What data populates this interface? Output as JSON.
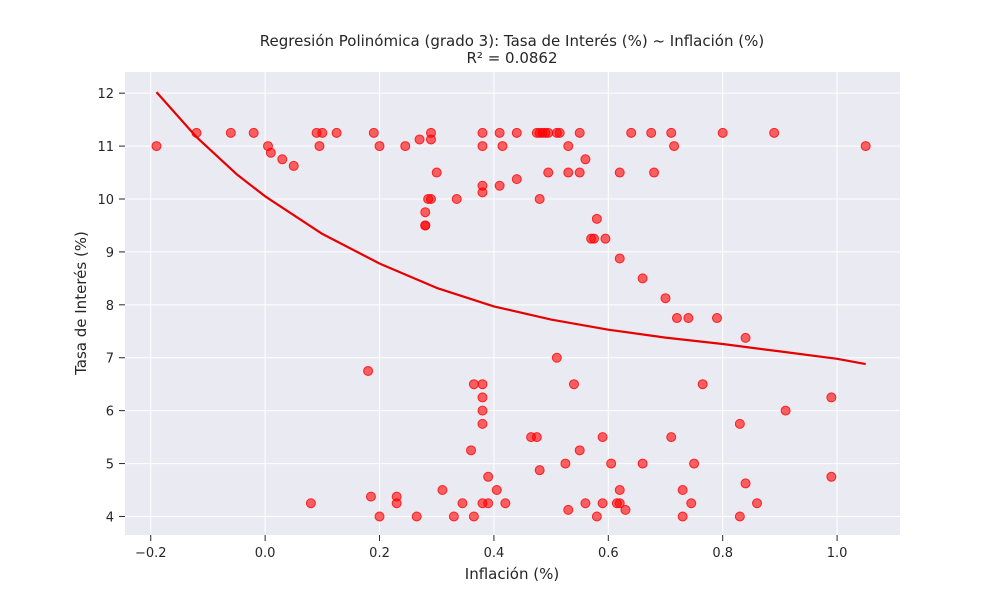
{
  "chart_data": {
    "type": "scatter",
    "title": "Regresión Polinómica (grado 3): Tasa de Interés (%) ~ Inflación (%)",
    "subtitle": "R² = 0.0862",
    "xlabel": "Inflación (%)",
    "ylabel": "Tasa de Interés (%)",
    "xlim": [
      -0.245,
      1.11
    ],
    "ylim": [
      3.65,
      12.4
    ],
    "xticks": [
      -0.2,
      0.0,
      0.2,
      0.4,
      0.6,
      0.8,
      1.0
    ],
    "xtick_labels": [
      "−0.2",
      "0.0",
      "0.2",
      "0.4",
      "0.6",
      "0.8",
      "1.0"
    ],
    "yticks": [
      4,
      5,
      6,
      7,
      8,
      9,
      10,
      11,
      12
    ],
    "ytick_labels": [
      "4",
      "5",
      "6",
      "7",
      "8",
      "9",
      "10",
      "11",
      "12"
    ],
    "grid": true,
    "background": "#eaeaf2",
    "colors": {
      "points": "#ff0000",
      "curve": "#e60000"
    },
    "series": [
      {
        "kind": "scatter",
        "points": [
          [
            -0.19,
            11.0
          ],
          [
            -0.12,
            11.25
          ],
          [
            -0.06,
            11.25
          ],
          [
            -0.02,
            11.25
          ],
          [
            0.005,
            11.0
          ],
          [
            0.01,
            10.875
          ],
          [
            0.03,
            10.75
          ],
          [
            0.05,
            10.625
          ],
          [
            0.09,
            11.25
          ],
          [
            0.1,
            11.25
          ],
          [
            0.095,
            11.0
          ],
          [
            0.125,
            11.25
          ],
          [
            0.19,
            11.25
          ],
          [
            0.2,
            11.0
          ],
          [
            0.245,
            11.0
          ],
          [
            0.27,
            11.125
          ],
          [
            0.29,
            11.125
          ],
          [
            0.29,
            11.25
          ],
          [
            0.3,
            10.5
          ],
          [
            0.285,
            10.0
          ],
          [
            0.29,
            10.0
          ],
          [
            0.28,
            9.75
          ],
          [
            0.28,
            9.5
          ],
          [
            0.28,
            9.5
          ],
          [
            0.335,
            10.0
          ],
          [
            0.38,
            11.25
          ],
          [
            0.38,
            11.0
          ],
          [
            0.38,
            10.25
          ],
          [
            0.38,
            10.125
          ],
          [
            0.41,
            11.25
          ],
          [
            0.415,
            11.0
          ],
          [
            0.41,
            10.25
          ],
          [
            0.44,
            11.25
          ],
          [
            0.44,
            10.375
          ],
          [
            0.475,
            11.25
          ],
          [
            0.48,
            11.25
          ],
          [
            0.485,
            11.25
          ],
          [
            0.49,
            11.25
          ],
          [
            0.495,
            11.25
          ],
          [
            0.51,
            11.25
          ],
          [
            0.515,
            11.25
          ],
          [
            0.53,
            11.0
          ],
          [
            0.55,
            11.25
          ],
          [
            0.56,
            10.75
          ],
          [
            0.48,
            10.0
          ],
          [
            0.495,
            10.5
          ],
          [
            0.53,
            10.5
          ],
          [
            0.55,
            10.5
          ],
          [
            0.58,
            9.625
          ],
          [
            0.57,
            9.25
          ],
          [
            0.575,
            9.25
          ],
          [
            0.595,
            9.25
          ],
          [
            0.62,
            8.875
          ],
          [
            0.62,
            10.5
          ],
          [
            0.64,
            11.25
          ],
          [
            0.675,
            11.25
          ],
          [
            0.68,
            10.5
          ],
          [
            0.71,
            11.25
          ],
          [
            0.715,
            11.0
          ],
          [
            0.8,
            11.25
          ],
          [
            0.89,
            11.25
          ],
          [
            1.05,
            11.0
          ],
          [
            0.66,
            8.5
          ],
          [
            0.7,
            8.125
          ],
          [
            0.72,
            7.75
          ],
          [
            0.74,
            7.75
          ],
          [
            0.79,
            7.75
          ],
          [
            0.84,
            7.375
          ],
          [
            0.51,
            7.0
          ],
          [
            0.18,
            6.75
          ],
          [
            0.365,
            6.5
          ],
          [
            0.38,
            6.5
          ],
          [
            0.54,
            6.5
          ],
          [
            0.765,
            6.5
          ],
          [
            0.38,
            6.25
          ],
          [
            0.38,
            6.0
          ],
          [
            0.38,
            5.75
          ],
          [
            0.91,
            6.0
          ],
          [
            0.99,
            6.25
          ],
          [
            0.83,
            5.75
          ],
          [
            0.465,
            5.5
          ],
          [
            0.475,
            5.5
          ],
          [
            0.59,
            5.5
          ],
          [
            0.71,
            5.5
          ],
          [
            0.36,
            5.25
          ],
          [
            0.55,
            5.25
          ],
          [
            0.525,
            5.0
          ],
          [
            0.605,
            5.0
          ],
          [
            0.66,
            5.0
          ],
          [
            0.75,
            5.0
          ],
          [
            0.48,
            4.875
          ],
          [
            0.39,
            4.75
          ],
          [
            0.99,
            4.75
          ],
          [
            0.84,
            4.625
          ],
          [
            0.31,
            4.5
          ],
          [
            0.405,
            4.5
          ],
          [
            0.62,
            4.5
          ],
          [
            0.73,
            4.5
          ],
          [
            0.08,
            4.25
          ],
          [
            0.185,
            4.375
          ],
          [
            0.23,
            4.375
          ],
          [
            0.23,
            4.25
          ],
          [
            0.345,
            4.25
          ],
          [
            0.38,
            4.25
          ],
          [
            0.39,
            4.25
          ],
          [
            0.42,
            4.25
          ],
          [
            0.56,
            4.25
          ],
          [
            0.59,
            4.25
          ],
          [
            0.615,
            4.25
          ],
          [
            0.62,
            4.25
          ],
          [
            0.745,
            4.25
          ],
          [
            0.86,
            4.25
          ],
          [
            0.53,
            4.125
          ],
          [
            0.63,
            4.125
          ],
          [
            0.2,
            4.0
          ],
          [
            0.265,
            4.0
          ],
          [
            0.33,
            4.0
          ],
          [
            0.365,
            4.0
          ],
          [
            0.58,
            4.0
          ],
          [
            0.73,
            4.0
          ],
          [
            0.83,
            4.0
          ]
        ]
      },
      {
        "kind": "line",
        "x": [
          -0.19,
          -0.12,
          -0.05,
          0.0,
          0.1,
          0.2,
          0.3,
          0.4,
          0.5,
          0.6,
          0.7,
          0.8,
          0.9,
          1.0,
          1.05
        ],
        "y": [
          12.02,
          11.17,
          10.47,
          10.05,
          9.34,
          8.78,
          8.32,
          7.97,
          7.72,
          7.53,
          7.38,
          7.26,
          7.12,
          6.98,
          6.88
        ]
      }
    ]
  }
}
